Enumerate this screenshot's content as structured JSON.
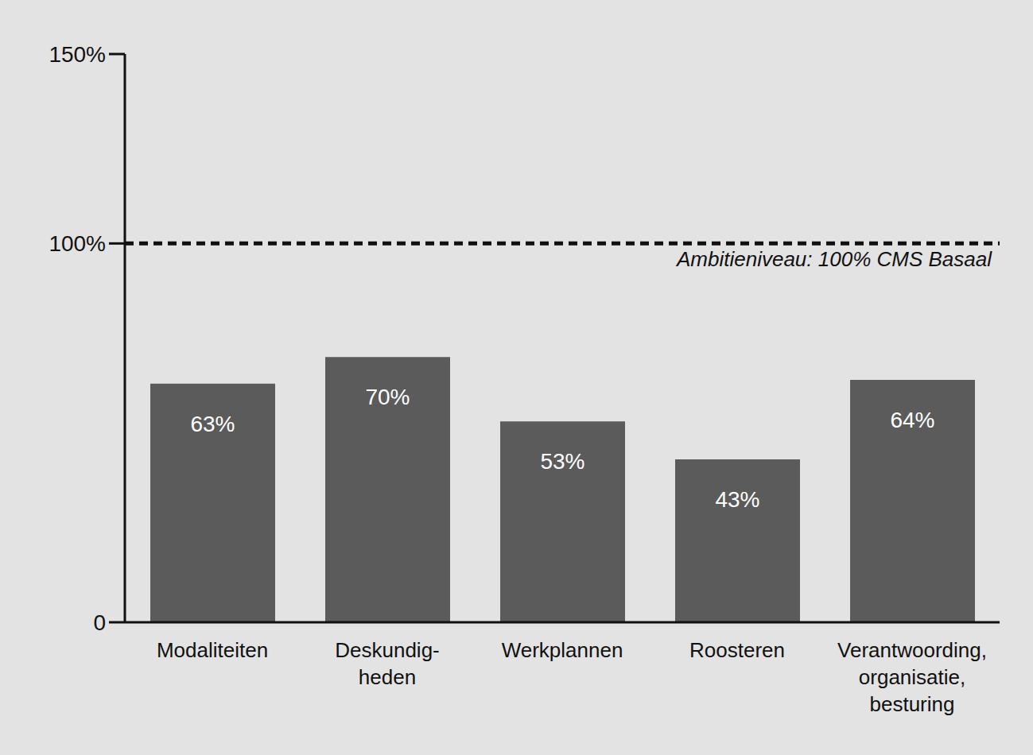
{
  "chart_data": {
    "type": "bar",
    "categories": [
      "Modaliteiten",
      "Deskundig-\nheden",
      "Werkplannen",
      "Roosteren",
      "Verantwoording,\norganisatie,\nbesturing"
    ],
    "values": [
      63,
      70,
      53,
      43,
      64
    ],
    "value_labels": [
      "63%",
      "70%",
      "53%",
      "43%",
      "64%"
    ],
    "color": "#5b5b5b",
    "ylim": [
      0,
      150
    ],
    "yticks": [
      {
        "value": 0,
        "label": "0"
      },
      {
        "value": 100,
        "label": "100%"
      },
      {
        "value": 150,
        "label": "150%"
      }
    ],
    "grid": false,
    "data_labels": true,
    "annotations": [
      {
        "text": "Ambitieniveau: 100% CMS Basaal",
        "y": 100,
        "line_style": "dashed"
      }
    ]
  }
}
